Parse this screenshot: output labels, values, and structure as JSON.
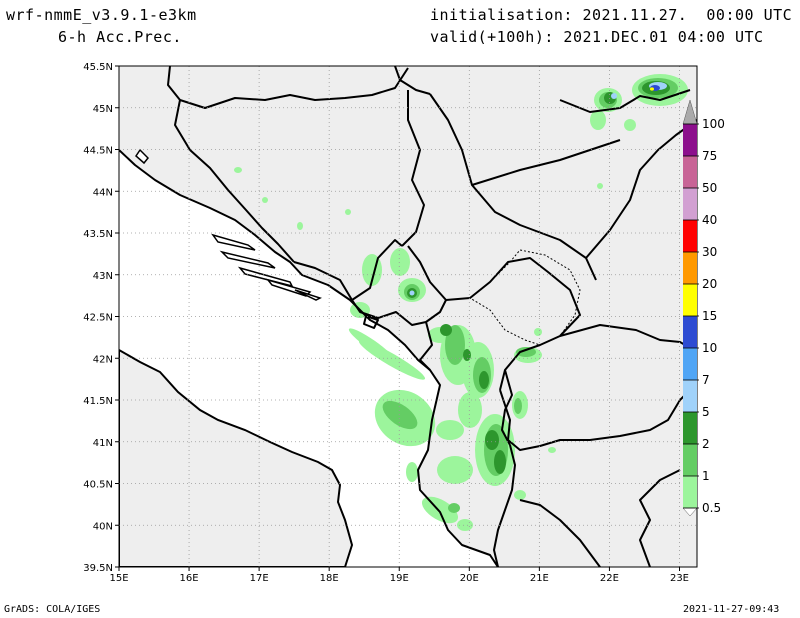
{
  "header": {
    "model": "wrf-nmmE_v3.9.1-e3km",
    "field": "6-h Acc.Prec.",
    "init": "initialisation: 2021.11.27.  00:00 UTC",
    "valid": "valid(+100h): 2021.DEC.01 04:00 UTC"
  },
  "footer": {
    "credit": "GrADS: COLA/IGES",
    "timestamp": "2021-11-27-09:43"
  },
  "map": {
    "lon_min": 15,
    "lon_max": 23.25,
    "lat_min": 39.5,
    "lat_max": 45.5,
    "lat_labels": [
      "39.5N",
      "40N",
      "40.5N",
      "41N",
      "41.5N",
      "42N",
      "42.5N",
      "43N",
      "43.5N",
      "44N",
      "44.5N",
      "45N",
      "45.5N"
    ],
    "lon_labels": [
      "15E",
      "16E",
      "17E",
      "18E",
      "19E",
      "20E",
      "21E",
      "22E",
      "23E"
    ],
    "grid": true,
    "land_color": "#eeeeee",
    "sea_color": "#ffffff"
  },
  "colorbar": {
    "labels": [
      "0.5",
      "1",
      "2",
      "5",
      "7",
      "10",
      "15",
      "20",
      "30",
      "40",
      "50",
      "75",
      "100"
    ],
    "colors": [
      "#9cf59c",
      "#64cd64",
      "#2d962d",
      "#a0d2fa",
      "#50a5f5",
      "#2d4bd2",
      "#ffff00",
      "#ff9900",
      "#ff0000",
      "#d2a0d2",
      "#c86496",
      "#8c0f8c",
      "#aaaaaa"
    ]
  }
}
